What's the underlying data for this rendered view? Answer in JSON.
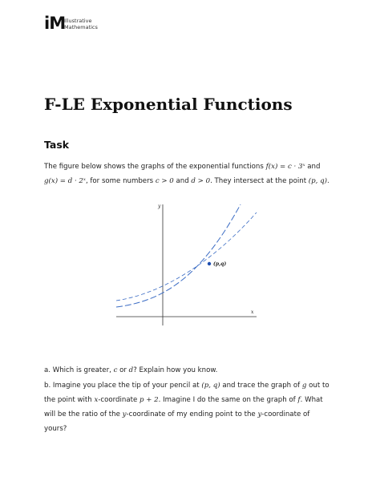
{
  "header": {
    "logo_mark": "iM",
    "logo_line1": "Illustrative",
    "logo_line2": "Mathematics"
  },
  "title": "F-LE Exponential Functions",
  "section": "Task",
  "intro": [
    "The figure below shows the graphs of the exponential functions ",
    "f(x) = c · 3ˣ",
    " and ",
    "g(x) = d · 2ˣ",
    ", for some numbers ",
    "c > 0",
    " and ",
    "d > 0",
    ". They intersect at the point ",
    "(p, q)",
    "."
  ],
  "figure": {
    "y_label": "y",
    "x_label": "x",
    "point_label": "(p,q)"
  },
  "questions": [
    [
      "a. Which is greater, ",
      "c",
      " or ",
      "d",
      "? Explain how you know."
    ],
    [
      "b. Imagine you place the tip of your pencil at ",
      "(p, q)",
      " and trace the graph of ",
      "g",
      " out to the point with ",
      "x",
      "-coordinate ",
      "p + 2",
      ". Imagine I do the same on the graph of ",
      "f",
      ". What will be the ratio of the ",
      "y",
      "-coordinate of my ending point to the ",
      "y",
      "-coordinate of yours?"
    ]
  ]
}
